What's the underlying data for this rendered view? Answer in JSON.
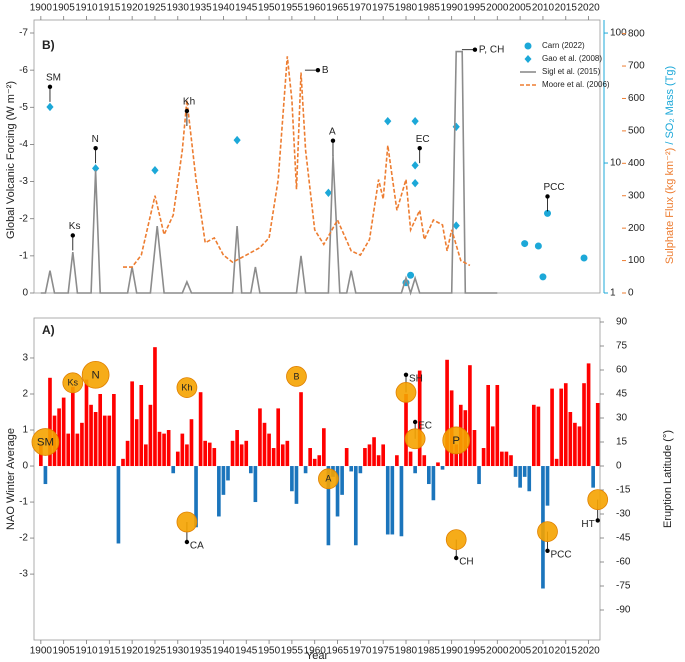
{
  "chart_data": [
    {
      "type": "line",
      "panel_label": "B)",
      "ylabel": "Global Volcanic Forcing (W m⁻²)",
      "y2label": "Sulphate Flux (kg km⁻²)",
      "y3label": "/ SO₂ Mass (Tg)",
      "xlim": [
        1898.5,
        2022.5
      ],
      "xticks": [
        1900,
        1905,
        1910,
        1915,
        1920,
        1925,
        1930,
        1935,
        1940,
        1945,
        1950,
        1955,
        1960,
        1965,
        1970,
        1975,
        1980,
        1985,
        1990,
        1995,
        2000,
        2005,
        2010,
        2015,
        2020
      ],
      "ylim": [
        0,
        -7.35
      ],
      "yticks": [
        -7,
        -6,
        -5,
        -4,
        -3,
        -2,
        -1,
        0
      ],
      "y2lim": [
        0,
        842
      ],
      "y2ticks": [
        0,
        100,
        200,
        300,
        400,
        500,
        600,
        700,
        800
      ],
      "y2color": "#ed7d31",
      "y3lim": [
        1,
        126
      ],
      "y3ticks": [
        1,
        10,
        100
      ],
      "y3log": true,
      "y3color": "#1ca8d8",
      "series": [
        {
          "name": "Carn (2022)",
          "color": "#1ca8d8",
          "marker": "circle",
          "axis": "y3",
          "x": [
            1980,
            1981,
            2006,
            2009,
            2010,
            2011,
            2019
          ],
          "values": [
            1.2,
            1.37,
            2.4,
            2.3,
            1.33,
            4.1,
            1.86
          ]
        },
        {
          "name": "Gao et al. (2008)",
          "color": "#1ca8d8",
          "marker": "diamond",
          "axis": "y3",
          "x": [
            1902,
            1912,
            1925,
            1943,
            1963,
            1976,
            1982,
            1982,
            1982,
            1991,
            1991
          ],
          "values": [
            27,
            9.1,
            8.8,
            15,
            5.9,
            21,
            9.6,
            7,
            21,
            19,
            3.3
          ]
        },
        {
          "name": "Sigl et al. (2015)",
          "color": "#8c8c8c",
          "marker": "line",
          "axis": "y",
          "x": [
            1900,
            1901,
            1902,
            1903,
            1906,
            1907,
            1908,
            1911,
            1912,
            1913,
            1919,
            1920,
            1921,
            1924,
            1925.5,
            1927,
            1931,
            1932,
            1933,
            1942,
            1943,
            1944,
            1946,
            1947,
            1948,
            1956,
            1957,
            1958,
            1963,
            1964,
            1965.5,
            1967,
            1968,
            1969,
            1979,
            1980,
            1981,
            1982,
            1983,
            1990,
            1991,
            1992.3,
            1993,
            2000
          ],
          "values": [
            0,
            0,
            -0.6,
            0,
            0,
            -1.1,
            0,
            0,
            -3.3,
            0,
            0,
            -0.7,
            0,
            0,
            -1.8,
            0,
            0,
            -0.3,
            0,
            0,
            -1.8,
            0,
            0,
            -0.7,
            0,
            0,
            -1.0,
            0,
            0,
            -3.7,
            0,
            0,
            -0.6,
            0,
            0,
            -0.4,
            0,
            -0.4,
            0,
            0,
            -6.5,
            -6.5,
            0,
            0
          ]
        },
        {
          "name": "Moore et al. (2006)",
          "color": "#ed7d31",
          "marker": "dashed",
          "axis": "y2",
          "x": [
            1918,
            1920,
            1922,
            1925,
            1927,
            1929,
            1931,
            1932,
            1934,
            1936,
            1938,
            1940,
            1942,
            1945,
            1948,
            1950,
            1952,
            1954,
            1955,
            1956,
            1957,
            1958,
            1960,
            1962,
            1965,
            1968,
            1970,
            1972,
            1974,
            1975,
            1976,
            1978,
            1980,
            1981,
            1983,
            1984,
            1986,
            1988,
            1989,
            1990,
            1992,
            1994
          ],
          "values": [
            80,
            80,
            117,
            300,
            180,
            240,
            440,
            595,
            350,
            155,
            170,
            117,
            95,
            117,
            140,
            170,
            350,
            730,
            595,
            320,
            680,
            440,
            195,
            150,
            225,
            130,
            117,
            165,
            350,
            290,
            455,
            255,
            350,
            195,
            255,
            165,
            225,
            210,
            130,
            195,
            100,
            85
          ]
        }
      ],
      "annotations": [
        {
          "text": "SM",
          "x": 1902,
          "y": -5.55
        },
        {
          "text": "Ks",
          "x": 1907,
          "y": -1.55
        },
        {
          "text": "N",
          "x": 1912,
          "y": -3.9
        },
        {
          "text": "Kh",
          "x": 1932,
          "y": -4.9
        },
        {
          "text": "B",
          "x": 1960.7,
          "y": -6.0,
          "leader": "horizontal"
        },
        {
          "text": "A",
          "x": 1964,
          "y": -4.1
        },
        {
          "text": "EC",
          "x": 1983,
          "y": -3.9
        },
        {
          "text": "P, CH",
          "x": 1995.1,
          "y": -6.55,
          "leader": "horizontal"
        },
        {
          "text": "PCC",
          "x": 2011,
          "y": -2.6
        }
      ]
    },
    {
      "type": "bar",
      "panel_label": "A)",
      "ylabel": "NAO Winter Average",
      "y2label": "Eruption Latitude (°)",
      "xlabel": "Year",
      "xlim": [
        1898.5,
        2022.5
      ],
      "xticks": [
        1900,
        1905,
        1910,
        1915,
        1920,
        1925,
        1930,
        1935,
        1940,
        1945,
        1950,
        1955,
        1960,
        1965,
        1970,
        1975,
        1980,
        1985,
        1990,
        1995,
        2000,
        2005,
        2010,
        2015,
        2020
      ],
      "ylim": [
        -4.83,
        4.11
      ],
      "yticks": [
        -3,
        -2,
        -1,
        0,
        1,
        2,
        3
      ],
      "y2lim": [
        -108.75,
        92.5
      ],
      "y2ticks": [
        -90,
        -75,
        -60,
        -45,
        -30,
        -15,
        0,
        15,
        30,
        45,
        60,
        75,
        90
      ],
      "pos_color": "#ff0000",
      "neg_color": "#1b75bc",
      "circle_color": "#f5a300",
      "x": [
        1900,
        1901,
        1902,
        1903,
        1904,
        1905,
        1906,
        1907,
        1908,
        1909,
        1910,
        1911,
        1912,
        1913,
        1914,
        1915,
        1916,
        1917,
        1918,
        1919,
        1920,
        1921,
        1922,
        1923,
        1924,
        1925,
        1926,
        1927,
        1928,
        1929,
        1930,
        1931,
        1932,
        1933,
        1934,
        1935,
        1936,
        1937,
        1938,
        1939,
        1940,
        1941,
        1942,
        1943,
        1944,
        1945,
        1946,
        1947,
        1948,
        1949,
        1950,
        1951,
        1952,
        1953,
        1954,
        1955,
        1956,
        1957,
        1958,
        1959,
        1960,
        1961,
        1962,
        1963,
        1964,
        1965,
        1966,
        1967,
        1968,
        1969,
        1970,
        1971,
        1972,
        1973,
        1974,
        1975,
        1976,
        1977,
        1978,
        1979,
        1980,
        1981,
        1982,
        1983,
        1984,
        1985,
        1986,
        1987,
        1988,
        1989,
        1990,
        1991,
        1992,
        1993,
        1994,
        1995,
        1996,
        1997,
        1998,
        1999,
        2000,
        2001,
        2002,
        2003,
        2004,
        2005,
        2006,
        2007,
        2008,
        2009,
        2010,
        2011,
        2012,
        2013,
        2014,
        2015,
        2016,
        2017,
        2018,
        2019,
        2020,
        2021,
        2022
      ],
      "values": [
        0.6,
        -0.5,
        2.45,
        1.4,
        1.6,
        1.9,
        0.9,
        2.2,
        0.9,
        1.2,
        2.4,
        1.7,
        1.5,
        2.0,
        1.4,
        1.4,
        2.0,
        -2.15,
        0.2,
        0.7,
        2.35,
        1.3,
        2.25,
        0.6,
        1.7,
        3.3,
        0.95,
        0.9,
        1.0,
        -0.2,
        0.4,
        0.9,
        0.6,
        1.3,
        -1.7,
        2.05,
        0.7,
        0.65,
        0.5,
        -1.4,
        -0.8,
        -0.4,
        0.7,
        1.0,
        0.6,
        0.7,
        -0.2,
        -1.0,
        1.6,
        1.2,
        0.9,
        0.5,
        1.6,
        0.6,
        0.7,
        -0.7,
        -1.05,
        2.05,
        -0.2,
        0.5,
        0.2,
        0.3,
        1.05,
        -2.2,
        -0.3,
        -1.4,
        -0.8,
        0.5,
        -0.15,
        -2.2,
        -0.2,
        0.5,
        0.6,
        0.8,
        0.3,
        0.6,
        -1.9,
        -1.9,
        0.3,
        -1.95,
        2.0,
        0.4,
        -0.2,
        2.65,
        0.3,
        -0.5,
        -0.95,
        0.1,
        -0.1,
        2.95,
        2.1,
        0.6,
        1.7,
        1.55,
        2.8,
        1.0,
        -0.5,
        0.5,
        2.25,
        1.1,
        2.25,
        0.4,
        0.4,
        0.3,
        -0.3,
        -0.6,
        -0.3,
        -0.7,
        1.7,
        1.65,
        -3.4,
        -1.1,
        2.15,
        0.2,
        2.15,
        2.3,
        1.5,
        1.2,
        1.1,
        2.3,
        2.85,
        -0.6,
        1.75
      ],
      "eruptions": [
        {
          "name": "SM",
          "x": 1901,
          "lat": 15,
          "vei": 6
        },
        {
          "name": "Ks",
          "x": 1907,
          "lat": 52,
          "vei": 5
        },
        {
          "name": "N",
          "x": 1912,
          "lat": 57,
          "vei": 6
        },
        {
          "name": "Kh",
          "x": 1932,
          "lat": 49,
          "vei": 5
        },
        {
          "name": "B",
          "x": 1956,
          "lat": 56,
          "vei": 5
        },
        {
          "name": "A",
          "x": 1963,
          "lat": -8,
          "vei": 5
        },
        {
          "name": "SH",
          "x": 1980,
          "lat": 46,
          "vei": 5,
          "pin": 57
        },
        {
          "name": "EC",
          "x": 1982,
          "lat": 17,
          "vei": 5,
          "pin": 27.5
        },
        {
          "name": "P",
          "x": 1991,
          "lat": 16,
          "vei": 6
        },
        {
          "name": "CA",
          "x": 1932,
          "lat": -35,
          "vei": 5,
          "pin": -47.5
        },
        {
          "name": "CH",
          "x": 1991,
          "lat": -46,
          "vei": 5,
          "pin": -57.5
        },
        {
          "name": "PCC",
          "x": 2011,
          "lat": -41,
          "vei": 5,
          "pin": -53
        },
        {
          "name": "HT",
          "x": 2022,
          "lat": -21,
          "vei": 5,
          "pin": -34
        }
      ]
    }
  ]
}
